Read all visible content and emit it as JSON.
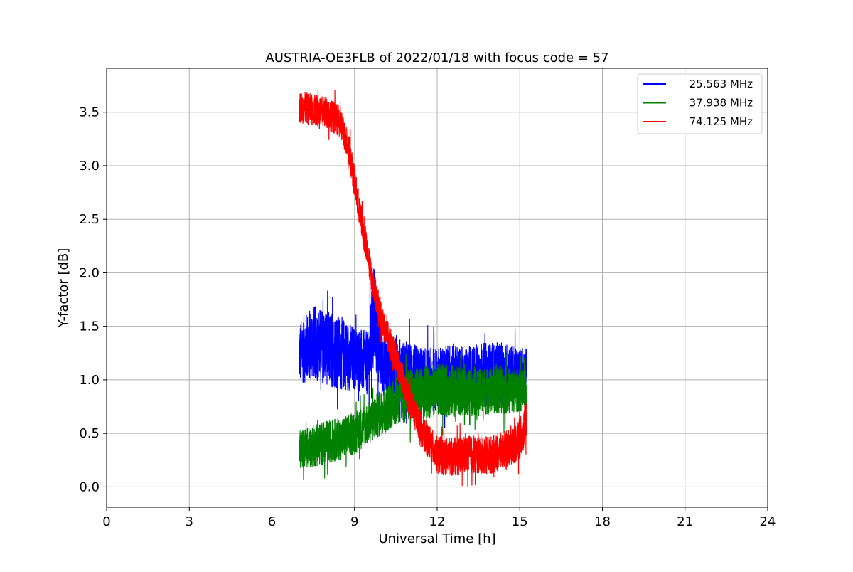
{
  "chart_data": {
    "type": "line",
    "title": "AUSTRIA-OE3FLB of 2022/01/18 with focus code = 57",
    "xlabel": "Universal Time [h]",
    "ylabel": "Y-factor [dB]",
    "xlim": [
      0,
      24
    ],
    "ylim": [
      -0.19,
      3.91
    ],
    "xticks": [
      0,
      3,
      6,
      9,
      12,
      15,
      18,
      21,
      24
    ],
    "xtick_labels": [
      "0",
      "3",
      "6",
      "9",
      "12",
      "15",
      "18",
      "21",
      "24"
    ],
    "yticks": [
      0.0,
      0.5,
      1.0,
      1.5,
      2.0,
      2.5,
      3.0,
      3.5
    ],
    "ytick_labels": [
      "0.0",
      "0.5",
      "1.0",
      "1.5",
      "2.0",
      "2.5",
      "3.0",
      "3.5"
    ],
    "grid": true,
    "legend_position": "top-right",
    "series": [
      {
        "name": "25.563 MHz",
        "color": "#0000ff",
        "x": [
          7.0,
          7.5,
          8.0,
          8.5,
          9.0,
          9.5,
          9.7,
          10.0,
          10.5,
          11.0,
          11.5,
          12.0,
          12.5,
          13.0,
          13.5,
          14.0,
          14.5,
          15.0,
          15.25
        ],
        "y": [
          1.25,
          1.35,
          1.3,
          1.25,
          1.2,
          1.15,
          1.6,
          1.15,
          1.1,
          1.05,
          1.0,
          1.0,
          1.05,
          1.0,
          1.05,
          1.05,
          1.05,
          1.05,
          1.1
        ],
        "noise": [
          0.3,
          0.35,
          0.35,
          0.35,
          0.3,
          0.3,
          0.5,
          0.3,
          0.3,
          0.3,
          0.3,
          0.3,
          0.3,
          0.3,
          0.3,
          0.3,
          0.3,
          0.25,
          0.2
        ]
      },
      {
        "name": "37.938 MHz",
        "color": "#008000",
        "x": [
          7.0,
          7.5,
          8.0,
          8.5,
          9.0,
          9.5,
          10.0,
          10.5,
          11.0,
          11.5,
          12.0,
          12.5,
          13.0,
          13.5,
          14.0,
          14.5,
          15.0,
          15.25
        ],
        "y": [
          0.35,
          0.38,
          0.42,
          0.45,
          0.5,
          0.6,
          0.7,
          0.8,
          0.85,
          0.88,
          0.9,
          0.9,
          0.88,
          0.88,
          0.9,
          0.9,
          0.9,
          0.9
        ],
        "noise": [
          0.18,
          0.2,
          0.2,
          0.2,
          0.2,
          0.2,
          0.22,
          0.22,
          0.25,
          0.25,
          0.25,
          0.25,
          0.22,
          0.22,
          0.22,
          0.22,
          0.2,
          0.2
        ]
      },
      {
        "name": "74.125 MHz",
        "color": "#ff0000",
        "x": [
          7.0,
          7.5,
          8.0,
          8.5,
          8.8,
          9.0,
          9.3,
          9.6,
          10.0,
          10.5,
          11.0,
          11.5,
          12.0,
          12.5,
          13.0,
          13.5,
          14.0,
          14.5,
          15.0,
          15.25
        ],
        "y": [
          3.55,
          3.52,
          3.5,
          3.4,
          3.15,
          2.85,
          2.4,
          2.0,
          1.55,
          1.2,
          0.8,
          0.5,
          0.3,
          0.28,
          0.3,
          0.3,
          0.3,
          0.35,
          0.45,
          0.6
        ],
        "noise": [
          0.15,
          0.15,
          0.15,
          0.15,
          0.15,
          0.15,
          0.15,
          0.15,
          0.15,
          0.15,
          0.15,
          0.15,
          0.18,
          0.18,
          0.18,
          0.18,
          0.18,
          0.18,
          0.2,
          0.2
        ]
      }
    ]
  }
}
